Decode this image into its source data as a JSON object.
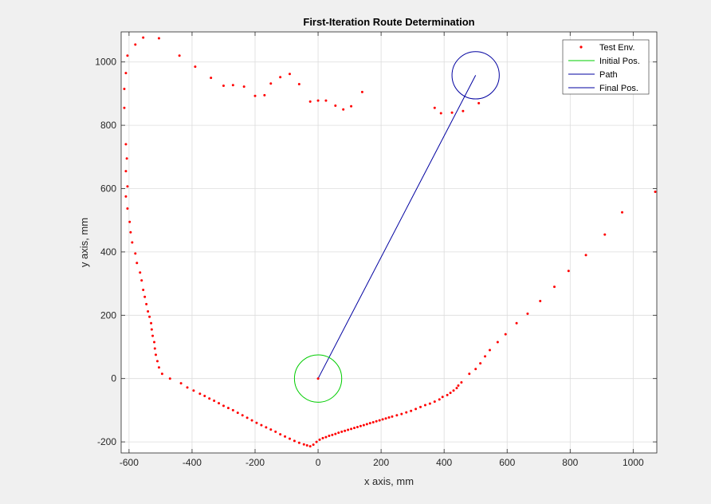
{
  "chart_data": {
    "type": "scatter",
    "title": "First-Iteration Route Determination",
    "xlabel": "x axis, mm",
    "ylabel": "y axis, mm",
    "xlim": [
      -625,
      1075
    ],
    "ylim": [
      -235,
      1095
    ],
    "x_ticks": [
      -600,
      -400,
      -200,
      0,
      200,
      400,
      600,
      800,
      1000
    ],
    "y_ticks": [
      -200,
      0,
      200,
      400,
      600,
      800,
      1000
    ],
    "grid": true,
    "legend_position": "top-right",
    "colors": {
      "test_env": "#ff0000",
      "initial_pos": "#00cc00",
      "path": "#0000a0",
      "final_pos": "#0000a0"
    },
    "series": [
      {
        "name": "Test Env.",
        "style": "points",
        "points": [
          [
            -615,
            915
          ],
          [
            -615,
            855
          ],
          [
            -610,
            965
          ],
          [
            -605,
            1020
          ],
          [
            -580,
            1055
          ],
          [
            -555,
            1077
          ],
          [
            -505,
            1075
          ],
          [
            -440,
            1020
          ],
          [
            -390,
            985
          ],
          [
            -340,
            950
          ],
          [
            -300,
            925
          ],
          [
            -270,
            927
          ],
          [
            -235,
            922
          ],
          [
            -200,
            893
          ],
          [
            -170,
            895
          ],
          [
            -150,
            932
          ],
          [
            -120,
            952
          ],
          [
            -90,
            962
          ],
          [
            -60,
            930
          ],
          [
            -25,
            875
          ],
          [
            0,
            878
          ],
          [
            25,
            878
          ],
          [
            55,
            862
          ],
          [
            80,
            850
          ],
          [
            105,
            860
          ],
          [
            140,
            905
          ],
          [
            370,
            855
          ],
          [
            390,
            838
          ],
          [
            425,
            840
          ],
          [
            460,
            845
          ],
          [
            510,
            870
          ],
          [
            -610,
            740
          ],
          [
            -607,
            695
          ],
          [
            -610,
            655
          ],
          [
            -605,
            607
          ],
          [
            -610,
            575
          ],
          [
            -605,
            537
          ],
          [
            -598,
            495
          ],
          [
            -595,
            462
          ],
          [
            -590,
            430
          ],
          [
            -580,
            395
          ],
          [
            -575,
            365
          ],
          [
            -565,
            335
          ],
          [
            -560,
            310
          ],
          [
            -555,
            280
          ],
          [
            -550,
            258
          ],
          [
            -545,
            235
          ],
          [
            -540,
            212
          ],
          [
            -535,
            195
          ],
          [
            -530,
            175
          ],
          [
            -528,
            155
          ],
          [
            -525,
            135
          ],
          [
            -520,
            115
          ],
          [
            -518,
            95
          ],
          [
            -515,
            75
          ],
          [
            -510,
            55
          ],
          [
            -505,
            35
          ],
          [
            -495,
            15
          ],
          [
            -470,
            0
          ],
          [
            -435,
            -15
          ],
          [
            -415,
            -28
          ],
          [
            -395,
            -38
          ],
          [
            -375,
            -48
          ],
          [
            -360,
            -55
          ],
          [
            -345,
            -63
          ],
          [
            -330,
            -70
          ],
          [
            -315,
            -78
          ],
          [
            -300,
            -86
          ],
          [
            -285,
            -93
          ],
          [
            -270,
            -100
          ],
          [
            -255,
            -108
          ],
          [
            -240,
            -116
          ],
          [
            -225,
            -124
          ],
          [
            -210,
            -132
          ],
          [
            -195,
            -140
          ],
          [
            -180,
            -147
          ],
          [
            -165,
            -154
          ],
          [
            -150,
            -161
          ],
          [
            -135,
            -168
          ],
          [
            -120,
            -176
          ],
          [
            -105,
            -183
          ],
          [
            -90,
            -190
          ],
          [
            -75,
            -197
          ],
          [
            -60,
            -203
          ],
          [
            -45,
            -208
          ],
          [
            -35,
            -211
          ],
          [
            -25,
            -214
          ],
          [
            -15,
            -209
          ],
          [
            -5,
            -200
          ],
          [
            5,
            -193
          ],
          [
            15,
            -188
          ],
          [
            25,
            -185
          ],
          [
            35,
            -181
          ],
          [
            45,
            -178
          ],
          [
            55,
            -175
          ],
          [
            65,
            -171
          ],
          [
            75,
            -168
          ],
          [
            85,
            -165
          ],
          [
            95,
            -162
          ],
          [
            105,
            -159
          ],
          [
            115,
            -156
          ],
          [
            125,
            -153
          ],
          [
            135,
            -150
          ],
          [
            145,
            -147
          ],
          [
            155,
            -144
          ],
          [
            165,
            -141
          ],
          [
            175,
            -138
          ],
          [
            185,
            -135
          ],
          [
            195,
            -132
          ],
          [
            205,
            -129
          ],
          [
            215,
            -126
          ],
          [
            225,
            -123
          ],
          [
            235,
            -120
          ],
          [
            250,
            -116
          ],
          [
            265,
            -112
          ],
          [
            280,
            -107
          ],
          [
            295,
            -102
          ],
          [
            310,
            -96
          ],
          [
            325,
            -90
          ],
          [
            340,
            -84
          ],
          [
            355,
            -79
          ],
          [
            370,
            -73
          ],
          [
            385,
            -66
          ],
          [
            395,
            -58
          ],
          [
            410,
            -52
          ],
          [
            420,
            -45
          ],
          [
            430,
            -38
          ],
          [
            440,
            -30
          ],
          [
            445,
            -22
          ],
          [
            455,
            -12
          ],
          [
            480,
            15
          ],
          [
            500,
            30
          ],
          [
            515,
            48
          ],
          [
            530,
            70
          ],
          [
            545,
            90
          ],
          [
            570,
            115
          ],
          [
            595,
            140
          ],
          [
            630,
            175
          ],
          [
            665,
            205
          ],
          [
            705,
            245
          ],
          [
            750,
            290
          ],
          [
            795,
            340
          ],
          [
            850,
            390
          ],
          [
            910,
            455
          ],
          [
            965,
            525
          ],
          [
            1070,
            590
          ]
        ]
      },
      {
        "name": "Initial Pos.",
        "style": "circle",
        "center": [
          0,
          0
        ],
        "radius": 75
      },
      {
        "name": "Path",
        "style": "line",
        "x": [
          0,
          500
        ],
        "y": [
          0,
          958
        ]
      },
      {
        "name": "Final Pos.",
        "style": "circle",
        "center": [
          500,
          958
        ],
        "radius": 75
      }
    ]
  }
}
